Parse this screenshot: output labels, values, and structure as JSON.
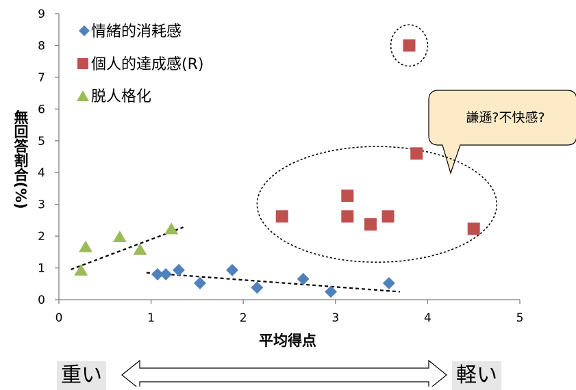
{
  "chart_data": {
    "type": "scatter",
    "xlabel": "平均得点",
    "ylabel": "無回答割合(%)",
    "xlim": [
      0,
      5
    ],
    "ylim": [
      0,
      9
    ],
    "x_ticks": [
      0,
      1,
      2,
      3,
      4,
      5
    ],
    "y_ticks": [
      0,
      1,
      2,
      3,
      4,
      5,
      6,
      7,
      8,
      9
    ],
    "grid": false,
    "legend_position": "top-left",
    "series": [
      {
        "name": "情緒的消耗感",
        "marker": "diamond",
        "color": "#4f81bd",
        "points": [
          [
            1.07,
            0.8
          ],
          [
            1.16,
            0.8
          ],
          [
            1.3,
            0.93
          ],
          [
            1.53,
            0.52
          ],
          [
            1.88,
            0.93
          ],
          [
            2.15,
            0.38
          ],
          [
            2.65,
            0.65
          ],
          [
            2.95,
            0.25
          ],
          [
            3.58,
            0.52
          ]
        ]
      },
      {
        "name": "個人的達成感(R)",
        "marker": "square",
        "color": "#c0504d",
        "points": [
          [
            2.42,
            2.62
          ],
          [
            3.13,
            3.27
          ],
          [
            3.13,
            2.62
          ],
          [
            3.38,
            2.37
          ],
          [
            3.57,
            2.62
          ],
          [
            3.8,
            8.0
          ],
          [
            3.88,
            4.6
          ],
          [
            4.5,
            2.23
          ]
        ]
      },
      {
        "name": "脱人格化",
        "marker": "triangle",
        "color": "#9bbb59",
        "points": [
          [
            0.24,
            0.93
          ],
          [
            0.29,
            1.67
          ],
          [
            0.66,
            1.98
          ],
          [
            0.88,
            1.58
          ],
          [
            1.22,
            2.23
          ]
        ]
      }
    ],
    "trendlines": [
      {
        "series": "脱人格化",
        "from": [
          0.13,
          0.95
        ],
        "to": [
          1.35,
          2.28
        ]
      },
      {
        "series": "情緒的消耗感",
        "from": [
          0.95,
          0.85
        ],
        "to": [
          3.7,
          0.25
        ]
      }
    ],
    "annotations": {
      "callout_text": "謙遜?不快感?",
      "ellipses": [
        {
          "center": [
            3.8,
            8.0
          ],
          "radius_x": 0.2,
          "radius_y": 0.65
        },
        {
          "center": [
            3.45,
            3.0
          ],
          "radius_x": 1.3,
          "radius_y": 1.82
        }
      ]
    }
  },
  "scale": {
    "left_label": "重い",
    "right_label": "軽い"
  },
  "colors": {
    "axis": "#7f7f7f",
    "callout_fill": "#fdebc8",
    "callout_stroke": "#000000"
  }
}
